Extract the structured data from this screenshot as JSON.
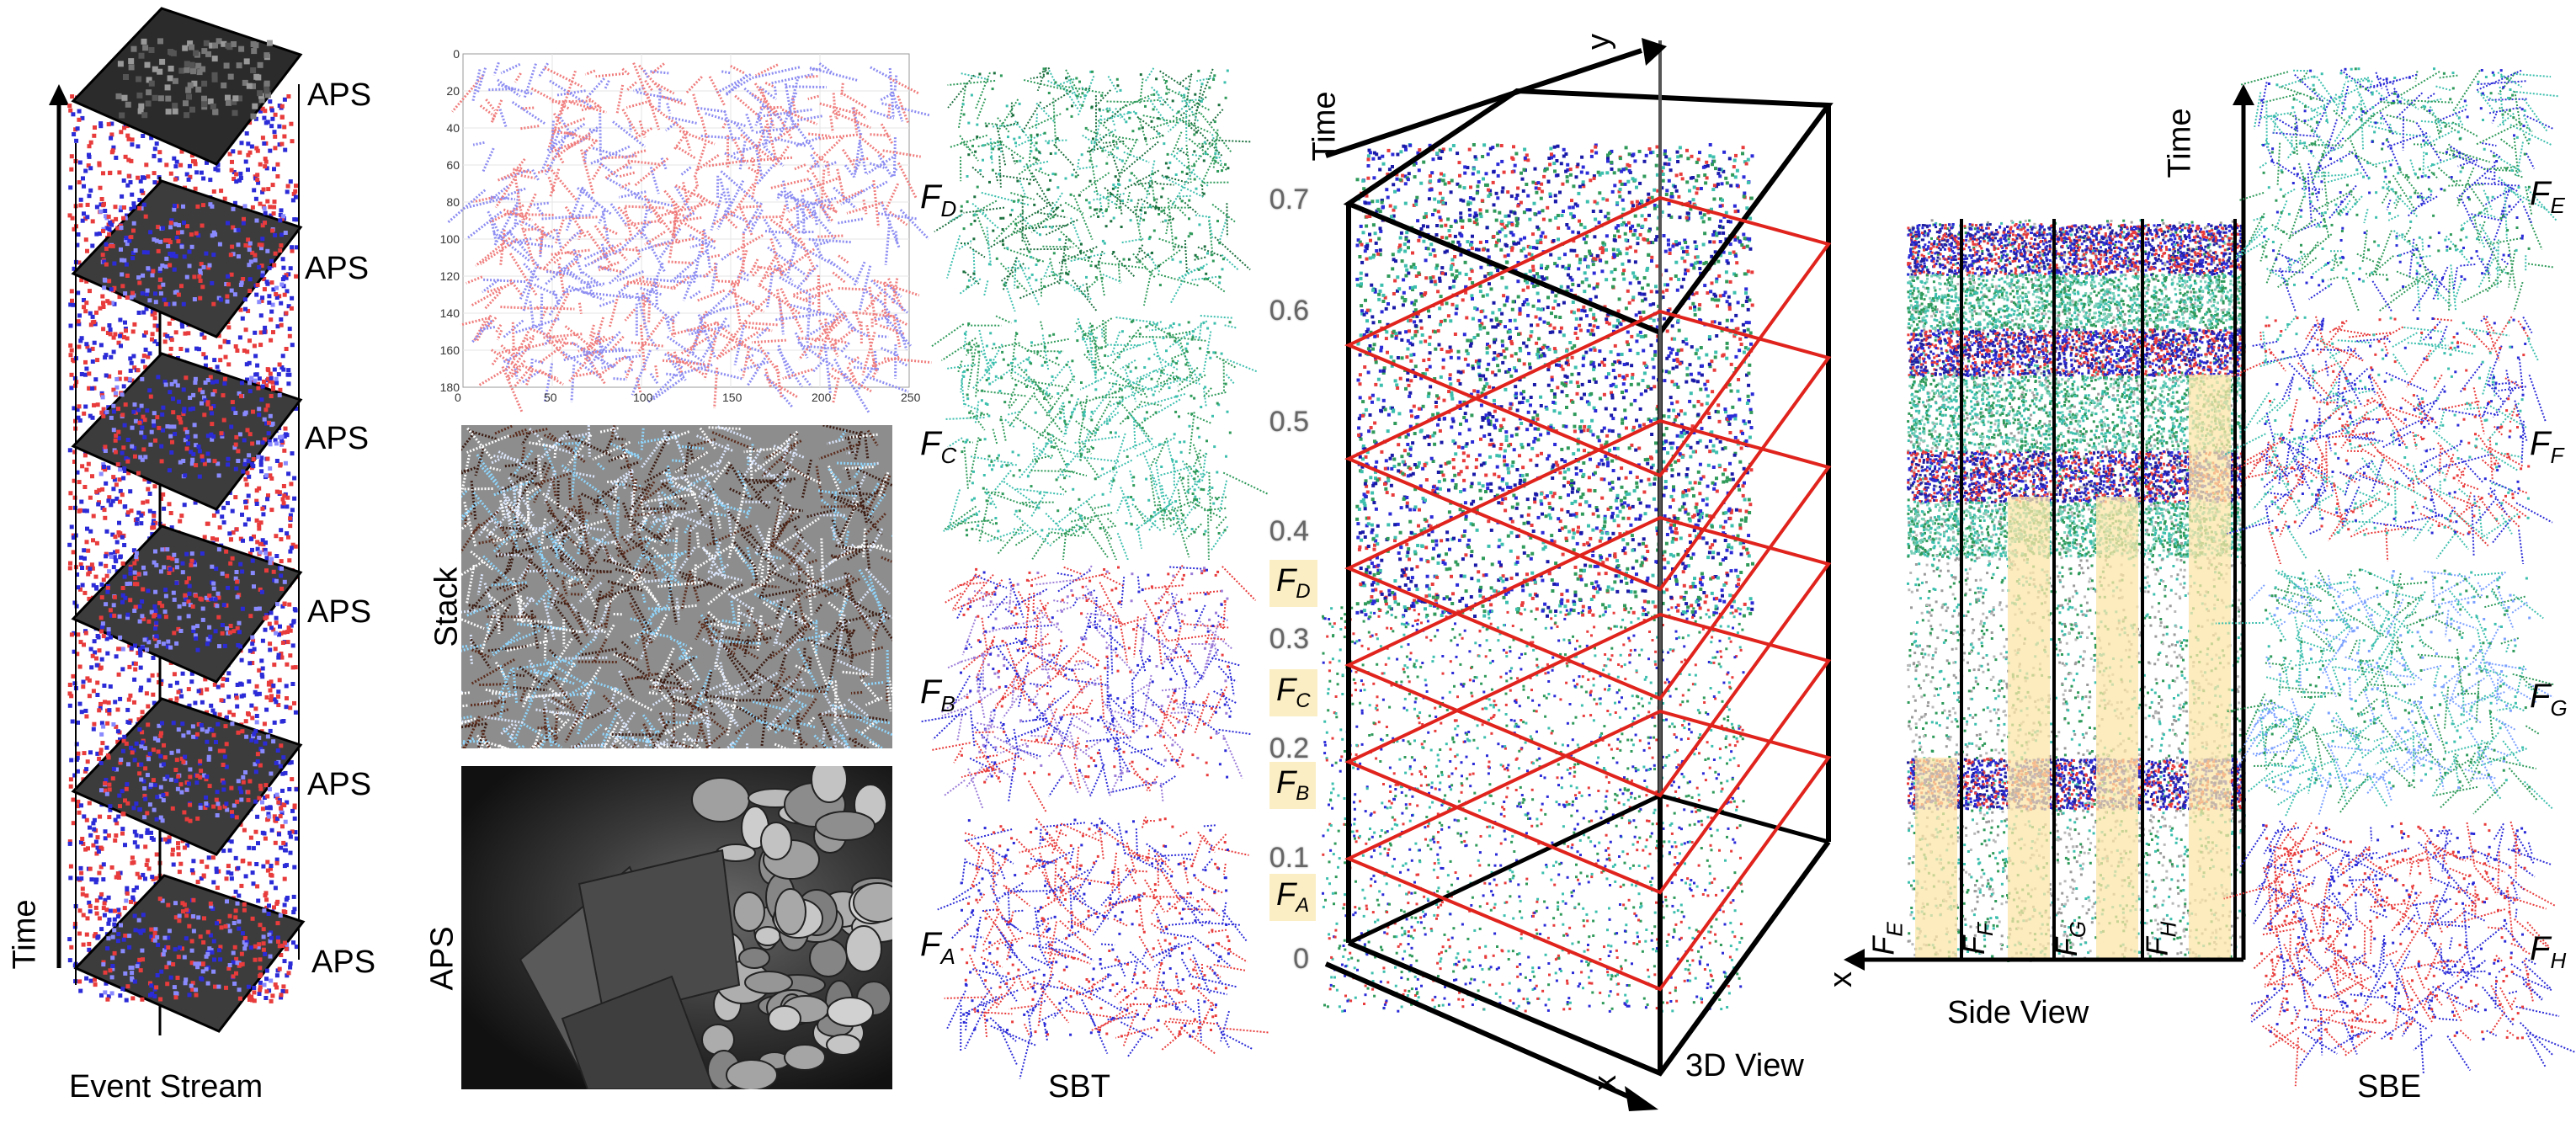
{
  "event_stream": {
    "caption": "Event Stream",
    "time_label": "Time",
    "aps_labels": [
      "APS",
      "APS",
      "APS",
      "APS",
      "APS",
      "APS"
    ]
  },
  "plot_inset": {
    "y_ticks": [
      "0",
      "20",
      "40",
      "60",
      "80",
      "100",
      "120",
      "140",
      "160",
      "180"
    ],
    "x_ticks": [
      "0",
      "50",
      "100",
      "150",
      "200",
      "250"
    ]
  },
  "stack_panel": {
    "label": "Stack"
  },
  "aps_panel": {
    "label": "APS"
  },
  "sbt": {
    "caption": "SBT",
    "frames": [
      {
        "letter": "F",
        "sub": "D"
      },
      {
        "letter": "F",
        "sub": "C"
      },
      {
        "letter": "F",
        "sub": "B"
      },
      {
        "letter": "F",
        "sub": "A"
      }
    ]
  },
  "view3d": {
    "caption": "3D View",
    "time_label": "Time",
    "axis_y": "y",
    "axis_x": "x",
    "t_ticks": [
      "0.7",
      "0.6",
      "0.5",
      "0.4",
      "0.3",
      "0.2",
      "0.1",
      "0"
    ],
    "band_labels": [
      {
        "letter": "F",
        "sub": "D"
      },
      {
        "letter": "F",
        "sub": "C"
      },
      {
        "letter": "F",
        "sub": "B"
      },
      {
        "letter": "F",
        "sub": "A"
      }
    ]
  },
  "side_view": {
    "caption": "Side View",
    "time_label": "Time",
    "axis_x": "x",
    "columns": [
      {
        "letter": "F",
        "sub": "E"
      },
      {
        "letter": "F",
        "sub": "F"
      },
      {
        "letter": "F",
        "sub": "G"
      },
      {
        "letter": "F",
        "sub": "H"
      }
    ]
  },
  "sbe": {
    "caption": "SBE",
    "frames": [
      {
        "letter": "F",
        "sub": "E"
      },
      {
        "letter": "F",
        "sub": "F"
      },
      {
        "letter": "F",
        "sub": "G"
      },
      {
        "letter": "F",
        "sub": "H"
      }
    ]
  },
  "colors": {
    "pos_event": "#e83b3b",
    "neg_event": "#2b2bd8",
    "green_event": "#2f9a5a",
    "teal_event": "#3dbfae",
    "slice": "#e0231c",
    "band": "#fbe6a8"
  }
}
